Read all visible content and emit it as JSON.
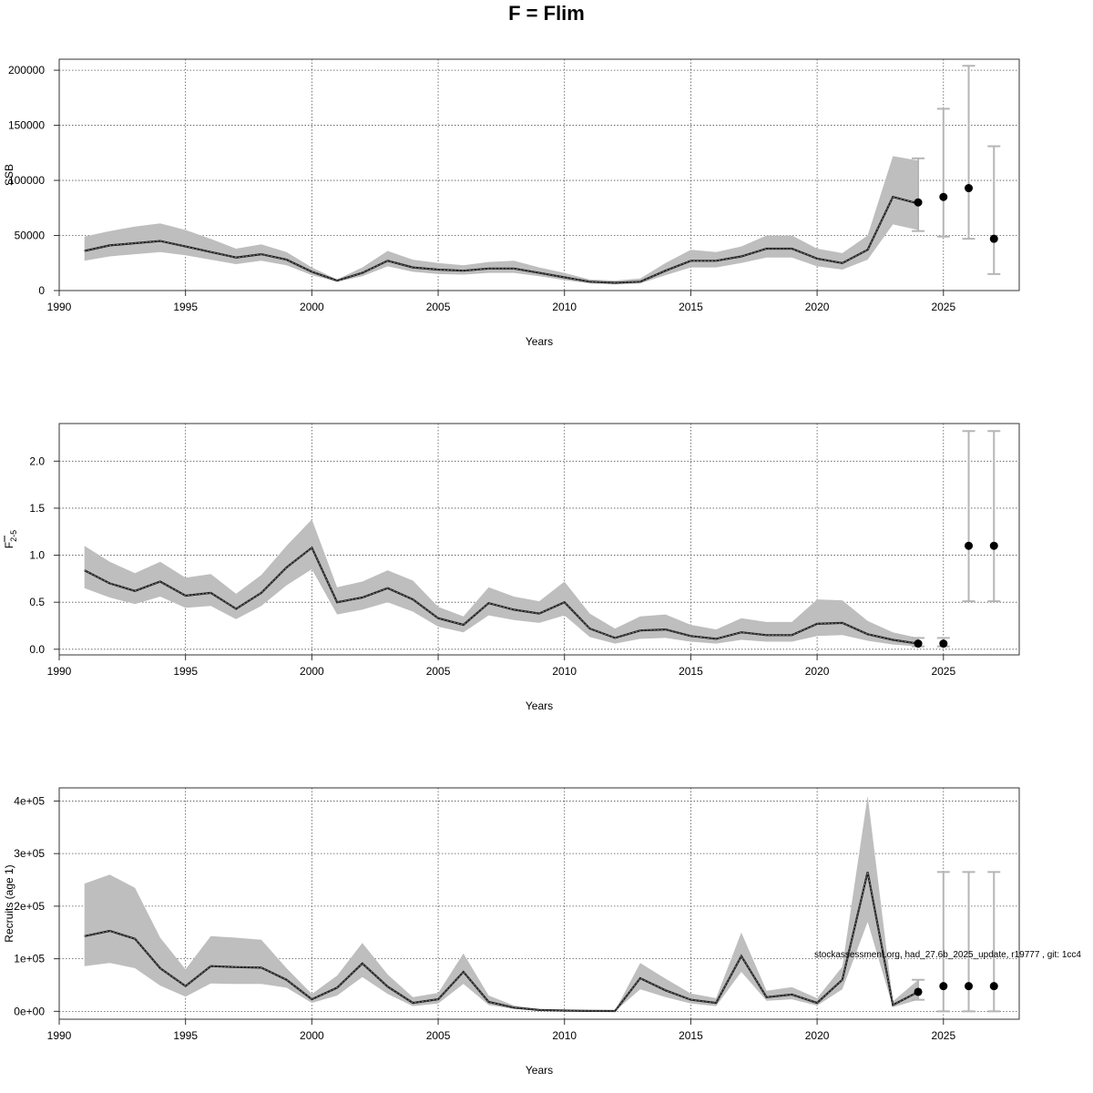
{
  "title": "F = Flim",
  "watermark": "stockassessment.org, had_27.6b_2025_update, r19777 , git: 1cc4",
  "chart_data": [
    {
      "type": "area",
      "name": "ssb",
      "xlabel": "Years",
      "ylabel": "SSB",
      "xlim": [
        1990,
        2028
      ],
      "ylim": [
        0,
        210000
      ],
      "xticks": [
        1990,
        1995,
        2000,
        2005,
        2010,
        2015,
        2020,
        2025
      ],
      "yticks": [
        0,
        50000,
        100000,
        150000,
        200000
      ],
      "ytick_labels": [
        "0",
        "50000",
        "100000",
        "150000",
        "200000"
      ],
      "grid": true,
      "x": [
        1991,
        1992,
        1993,
        1994,
        1995,
        1996,
        1997,
        1998,
        1999,
        2000,
        2001,
        2002,
        2003,
        2004,
        2005,
        2006,
        2007,
        2008,
        2009,
        2010,
        2011,
        2012,
        2013,
        2014,
        2015,
        2016,
        2017,
        2018,
        2019,
        2020,
        2021,
        2022,
        2023,
        2024
      ],
      "estimate": [
        36000,
        41000,
        43000,
        45000,
        40000,
        35000,
        30000,
        33000,
        28000,
        17000,
        9000,
        16000,
        27000,
        21000,
        19000,
        18000,
        20000,
        20000,
        16000,
        12000,
        8000,
        7000,
        8000,
        18000,
        27000,
        27000,
        31000,
        38000,
        38000,
        29000,
        25000,
        37000,
        85000,
        79000
      ],
      "lower": [
        27000,
        31000,
        33000,
        35000,
        32000,
        28000,
        24000,
        27000,
        23000,
        14000,
        8000,
        13000,
        22000,
        17000,
        15000,
        14500,
        16000,
        16000,
        13000,
        9500,
        6500,
        5500,
        6500,
        14000,
        21000,
        21000,
        25000,
        30000,
        30000,
        22000,
        19000,
        28000,
        60000,
        55000
      ],
      "upper": [
        49000,
        54000,
        58000,
        61000,
        55000,
        47000,
        38000,
        42000,
        35000,
        21000,
        10000,
        21000,
        36000,
        28000,
        25000,
        23000,
        26000,
        27000,
        21000,
        16000,
        10000,
        9000,
        11000,
        25000,
        37000,
        35000,
        40000,
        50000,
        50000,
        38000,
        34000,
        50000,
        122000,
        118000
      ],
      "forecast": {
        "x": [
          2024,
          2025,
          2026,
          2027
        ],
        "median": [
          80000,
          85000,
          93000,
          47000
        ],
        "lower": [
          54000,
          49000,
          47000,
          15000
        ],
        "upper": [
          120000,
          165000,
          204000,
          131000
        ]
      }
    },
    {
      "type": "area",
      "name": "fbar",
      "xlabel": "Years",
      "ylabel": "F",
      "ylabel_sub": "2-5",
      "xlim": [
        1990,
        2028
      ],
      "ylim": [
        -0.06,
        2.4
      ],
      "xticks": [
        1990,
        1995,
        2000,
        2005,
        2010,
        2015,
        2020,
        2025
      ],
      "yticks": [
        0,
        0.5,
        1,
        1.5,
        2
      ],
      "ytick_labels": [
        "0.0",
        "0.5",
        "1.0",
        "1.5",
        "2.0"
      ],
      "grid": true,
      "x": [
        1991,
        1992,
        1993,
        1994,
        1995,
        1996,
        1997,
        1998,
        1999,
        2000,
        2001,
        2002,
        2003,
        2004,
        2005,
        2006,
        2007,
        2008,
        2009,
        2010,
        2011,
        2012,
        2013,
        2014,
        2015,
        2016,
        2017,
        2018,
        2019,
        2020,
        2021,
        2022,
        2023,
        2024
      ],
      "estimate": [
        0.84,
        0.7,
        0.62,
        0.72,
        0.57,
        0.6,
        0.43,
        0.6,
        0.87,
        1.08,
        0.5,
        0.55,
        0.65,
        0.53,
        0.33,
        0.26,
        0.49,
        0.42,
        0.38,
        0.5,
        0.22,
        0.12,
        0.2,
        0.21,
        0.14,
        0.11,
        0.18,
        0.15,
        0.15,
        0.27,
        0.28,
        0.16,
        0.1,
        0.06
      ],
      "lower": [
        0.65,
        0.55,
        0.48,
        0.56,
        0.44,
        0.46,
        0.32,
        0.46,
        0.68,
        0.85,
        0.37,
        0.42,
        0.5,
        0.4,
        0.24,
        0.18,
        0.36,
        0.31,
        0.28,
        0.36,
        0.13,
        0.06,
        0.11,
        0.12,
        0.08,
        0.06,
        0.1,
        0.08,
        0.08,
        0.14,
        0.15,
        0.09,
        0.05,
        0.03
      ],
      "upper": [
        1.1,
        0.93,
        0.81,
        0.93,
        0.76,
        0.8,
        0.59,
        0.79,
        1.1,
        1.38,
        0.66,
        0.72,
        0.84,
        0.73,
        0.45,
        0.35,
        0.66,
        0.56,
        0.51,
        0.72,
        0.38,
        0.22,
        0.35,
        0.37,
        0.26,
        0.21,
        0.33,
        0.29,
        0.29,
        0.53,
        0.52,
        0.3,
        0.18,
        0.12
      ],
      "forecast": {
        "x": [
          2024,
          2025,
          2026,
          2027
        ],
        "median": [
          0.06,
          0.06,
          1.1,
          1.1
        ],
        "lower": [
          0.03,
          0.03,
          0.51,
          0.51
        ],
        "upper": [
          0.12,
          0.12,
          2.32,
          2.32
        ]
      }
    },
    {
      "type": "area",
      "name": "recruits",
      "xlabel": "Years",
      "ylabel": "Recruits (age 1)",
      "xlim": [
        1990,
        2028
      ],
      "ylim": [
        -15000,
        425000
      ],
      "xticks": [
        1990,
        1995,
        2000,
        2005,
        2010,
        2015,
        2020,
        2025
      ],
      "yticks": [
        0,
        100000,
        200000,
        300000,
        400000
      ],
      "ytick_labels": [
        "0e+00",
        "1e+05",
        "2e+05",
        "3e+05",
        "4e+05"
      ],
      "grid": true,
      "x": [
        1991,
        1992,
        1993,
        1994,
        1995,
        1996,
        1997,
        1998,
        1999,
        2000,
        2001,
        2002,
        2003,
        2004,
        2005,
        2006,
        2007,
        2008,
        2009,
        2010,
        2011,
        2012,
        2013,
        2014,
        2015,
        2016,
        2017,
        2018,
        2019,
        2020,
        2021,
        2022,
        2023,
        2024
      ],
      "estimate": [
        143000,
        153000,
        138000,
        82000,
        48000,
        86000,
        84000,
        83000,
        60000,
        23000,
        45000,
        91000,
        47000,
        16000,
        23000,
        75000,
        18000,
        7000,
        2500,
        1500,
        800,
        600,
        63000,
        40000,
        22000,
        16000,
        105000,
        27000,
        32000,
        16000,
        60000,
        265000,
        12000,
        37000
      ],
      "lower": [
        86000,
        92000,
        82000,
        49000,
        28000,
        53000,
        52000,
        52000,
        45000,
        16000,
        30000,
        65000,
        33000,
        10000,
        15000,
        52000,
        12000,
        4500,
        1500,
        900,
        400,
        300,
        42000,
        27000,
        15000,
        10000,
        75000,
        20000,
        23000,
        11000,
        42000,
        170000,
        8000,
        22000
      ],
      "upper": [
        243000,
        260000,
        235000,
        140000,
        80000,
        143000,
        140000,
        136000,
        82000,
        33000,
        68000,
        130000,
        70000,
        27000,
        35000,
        110000,
        30000,
        11000,
        4500,
        2500,
        1500,
        1200,
        92000,
        62000,
        34000,
        25000,
        150000,
        39000,
        46000,
        25000,
        85000,
        410000,
        19000,
        60000
      ],
      "forecast": {
        "x": [
          2024,
          2025,
          2026,
          2027
        ],
        "median": [
          37000,
          48000,
          48000,
          48000
        ],
        "lower": [
          22000,
          0,
          0,
          0
        ],
        "upper": [
          60000,
          265000,
          265000,
          265000
        ]
      }
    }
  ]
}
